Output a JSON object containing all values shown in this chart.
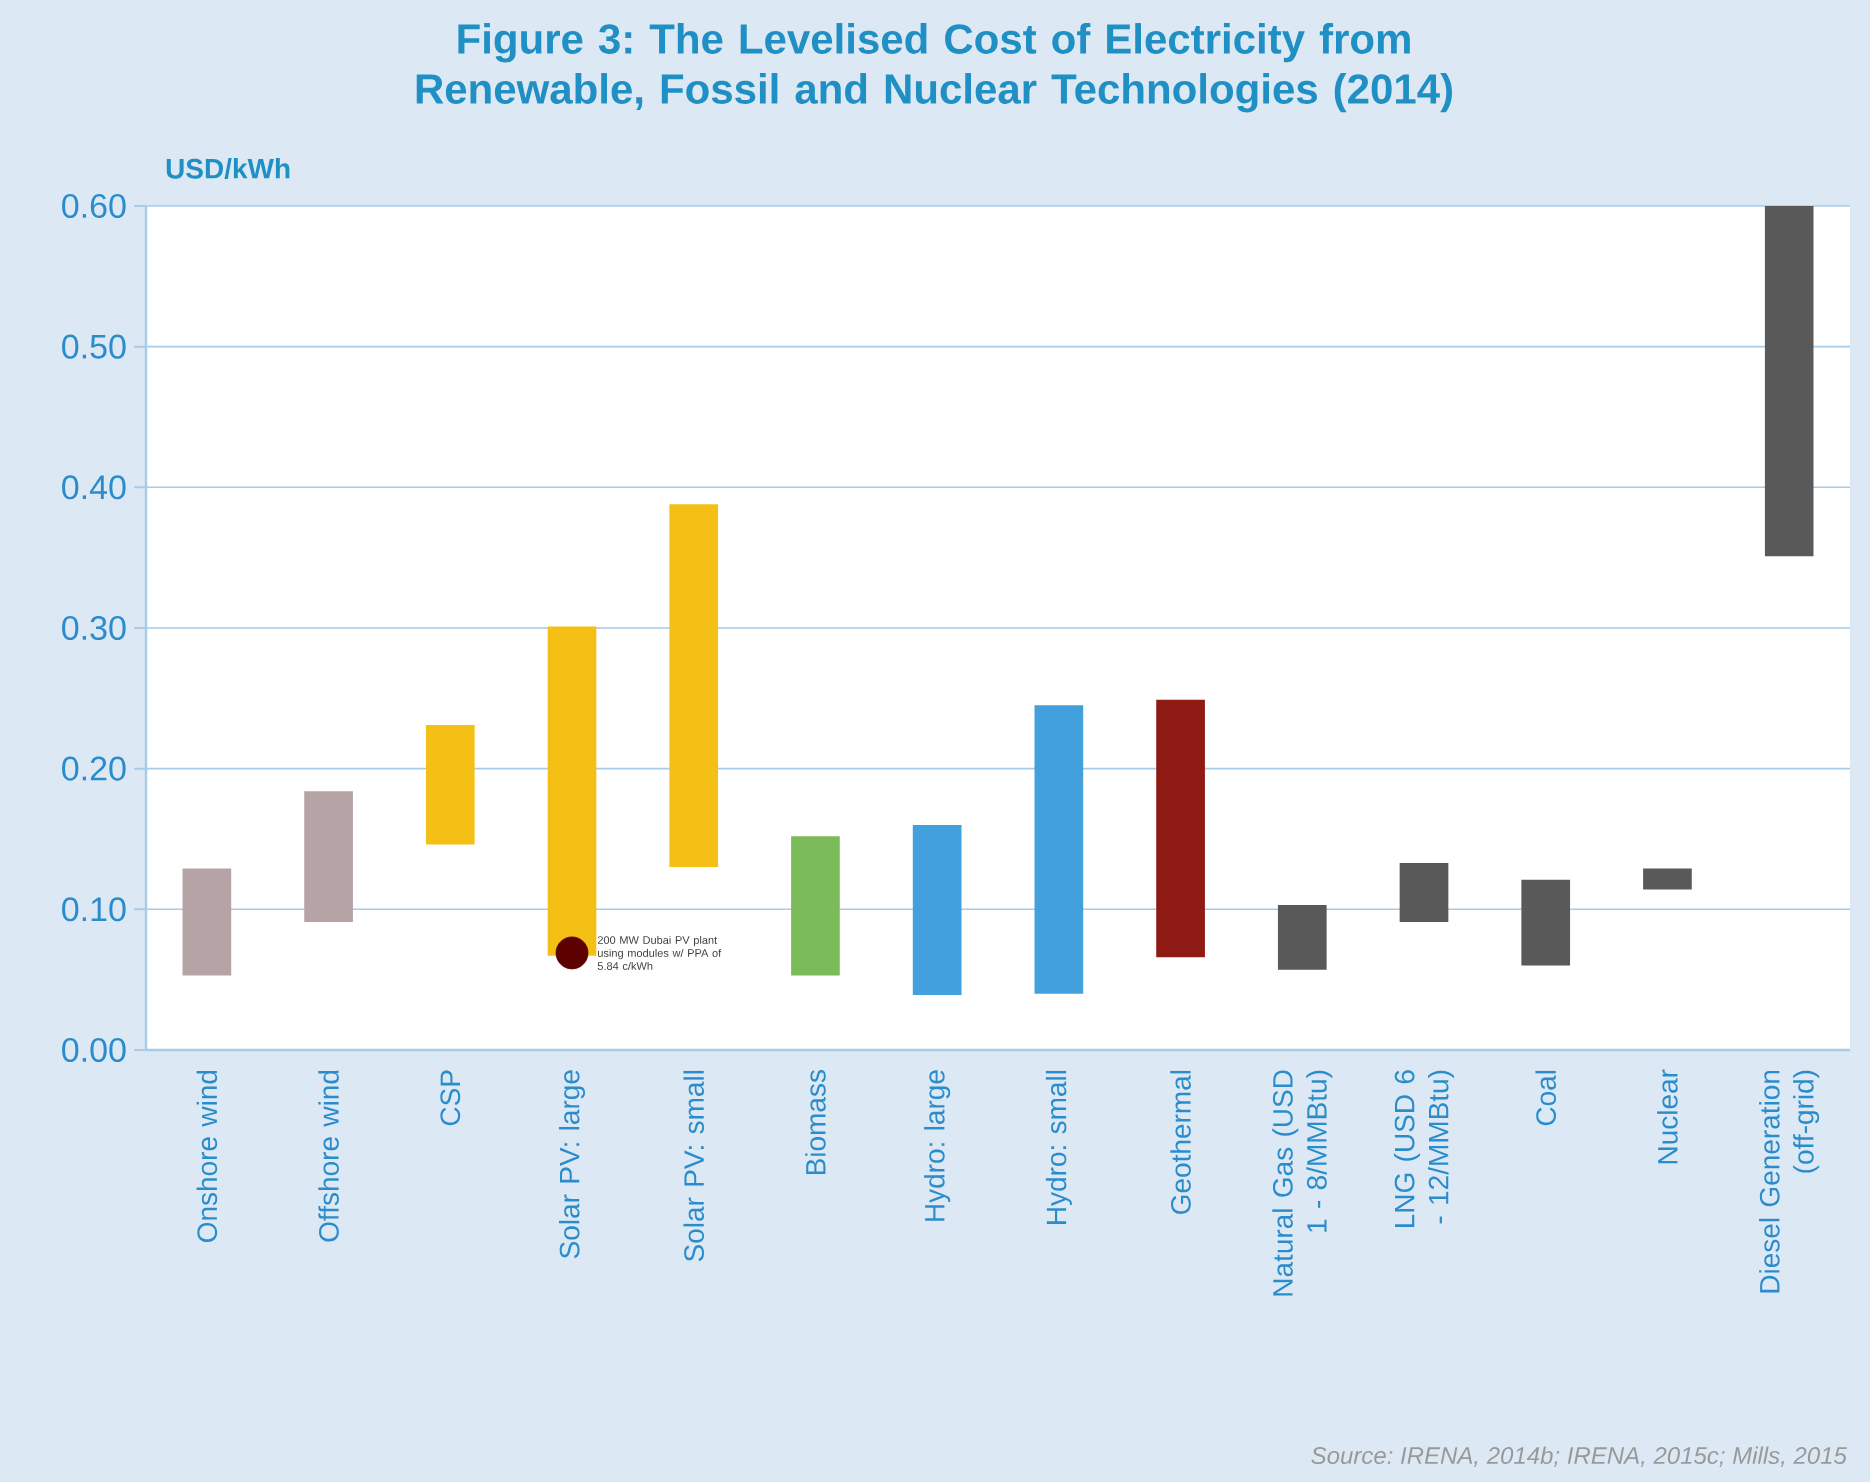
{
  "chart_data": {
    "type": "bar",
    "title": "Figure 3: The Levelised Cost of Electricity from Renewable, Fossil and Nuclear Technologies (2014)",
    "ylabel": "USD/kWh",
    "categories": [
      "Onshore wind",
      "Offshore wind",
      "CSP",
      "Solar PV: large",
      "Solar PV: small",
      "Biomass",
      "Hydro: large",
      "Hydro: small",
      "Geothermal",
      "Natural Gas (USD 1 - 8/MMBtu)",
      "LNG (USD 6 - 12/MMBtu)",
      "Coal",
      "Nuclear",
      "Diesel Generation (off-grid)"
    ],
    "series": [
      {
        "base": [
          0.053,
          0.091,
          0.146,
          0.067,
          0.13,
          0.053,
          0.039,
          0.04,
          0.066,
          0.057,
          0.091,
          0.06,
          0.114,
          0.351
        ],
        "values": [
          0.076,
          0.093,
          0.085,
          0.234,
          0.258,
          0.099,
          0.121,
          0.205,
          0.183,
          0.046,
          0.042,
          0.061,
          0.015,
          0.249
        ],
        "colors": [
          "#b5a3a6",
          "#b5a3a6",
          "#f5c016",
          "#f5c016",
          "#f5c016",
          "#7bbb5a",
          "#42a0dc",
          "#42a0dc",
          "#8f1a14",
          "#595959",
          "#595959",
          "#595959",
          "#595959",
          "#595959"
        ]
      },
      {
        "type": "scatter",
        "x": [
          "Solar PV: large"
        ],
        "values": [
          0.069
        ],
        "color": "#5c0000",
        "marker": "circle"
      }
    ],
    "ylim": [
      0,
      0.6
    ],
    "yticks": [
      {
        "value": 0,
        "label": "0.00"
      },
      {
        "value": 0.1,
        "label": "0.10"
      },
      {
        "value": 0.2,
        "label": "0.20"
      },
      {
        "value": 0.3,
        "label": "0.30"
      },
      {
        "value": 0.4,
        "label": "0.40"
      },
      {
        "value": 0.5,
        "label": "0.50"
      },
      {
        "value": 0.6,
        "label": "0.60"
      }
    ],
    "grid": "y",
    "annotations": [
      {
        "text": "200 MW Dubai PV plant using modules w/ PPA of 5.84 c/kWh",
        "x": "Solar PV: large",
        "y": 0.069
      },
      "Source: IRENA, 2014b; IRENA, 2015c; Mills, 2015"
    ]
  }
}
